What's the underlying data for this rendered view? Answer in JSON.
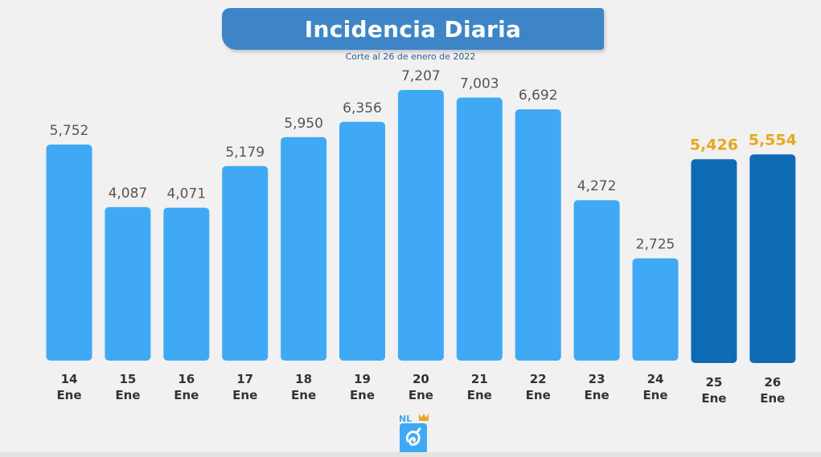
{
  "title": "Incidencia Diaria",
  "subtitle": "Corte al 26 de enero de 2022",
  "colors": {
    "banner": "#3d85c6",
    "bar_default": "#3fa9f5",
    "bar_highlight": "#0f6ab4",
    "label_default": "#555555",
    "label_highlight": "#e6a820",
    "axis_label": "#333333"
  },
  "chart_data": {
    "type": "bar",
    "title": "Incidencia Diaria",
    "subtitle": "Corte al 26 de enero de 2022",
    "categories": [
      {
        "day": "14",
        "month": "Ene"
      },
      {
        "day": "15",
        "month": "Ene"
      },
      {
        "day": "16",
        "month": "Ene"
      },
      {
        "day": "17",
        "month": "Ene"
      },
      {
        "day": "18",
        "month": "Ene"
      },
      {
        "day": "19",
        "month": "Ene"
      },
      {
        "day": "20",
        "month": "Ene"
      },
      {
        "day": "21",
        "month": "Ene"
      },
      {
        "day": "22",
        "month": "Ene"
      },
      {
        "day": "23",
        "month": "Ene"
      },
      {
        "day": "24",
        "month": "Ene"
      },
      {
        "day": "25",
        "month": "Ene"
      },
      {
        "day": "26",
        "month": "Ene"
      }
    ],
    "values": [
      5752,
      4087,
      4071,
      5179,
      5950,
      6356,
      7207,
      7003,
      6692,
      4272,
      2725,
      5426,
      5554
    ],
    "value_labels": [
      "5,752",
      "4,087",
      "4,071",
      "5,179",
      "5,950",
      "6,356",
      "7,207",
      "7,003",
      "6,692",
      "4,272",
      "2,725",
      "5,426",
      "5,554"
    ],
    "highlighted": [
      false,
      false,
      false,
      false,
      false,
      false,
      false,
      false,
      false,
      false,
      false,
      true,
      true
    ],
    "grid": false,
    "legend": "none"
  },
  "logo": {
    "text": "NL",
    "icon": "nuevo-leon-logo-icon"
  }
}
